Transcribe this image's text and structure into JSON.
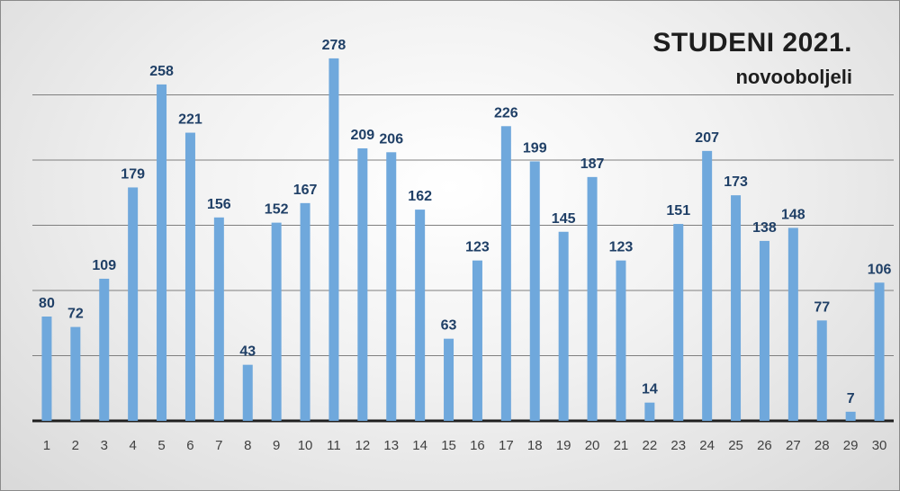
{
  "title": "STUDENI 2021.",
  "subtitle": "novooboljeli",
  "colors": {
    "bar": "#6fa8dc",
    "label": "#1f3f66",
    "grid": "#7f7f7f"
  },
  "chart_data": {
    "type": "bar",
    "title": "STUDENI 2021.",
    "subtitle": "novooboljeli",
    "categories": [
      "1",
      "2",
      "3",
      "4",
      "5",
      "6",
      "7",
      "8",
      "9",
      "10",
      "11",
      "12",
      "13",
      "14",
      "15",
      "16",
      "17",
      "18",
      "19",
      "20",
      "21",
      "22",
      "23",
      "24",
      "25",
      "26",
      "27",
      "28",
      "29",
      "30"
    ],
    "values": [
      80,
      72,
      109,
      179,
      258,
      221,
      156,
      43,
      152,
      167,
      278,
      209,
      206,
      162,
      63,
      123,
      226,
      199,
      145,
      187,
      123,
      14,
      151,
      207,
      173,
      138,
      148,
      77,
      7,
      106
    ],
    "xlabel": "",
    "ylabel": "",
    "ylim": [
      0,
      300
    ],
    "grid": true,
    "y_tick_labels_shown": false,
    "legend": "none"
  }
}
